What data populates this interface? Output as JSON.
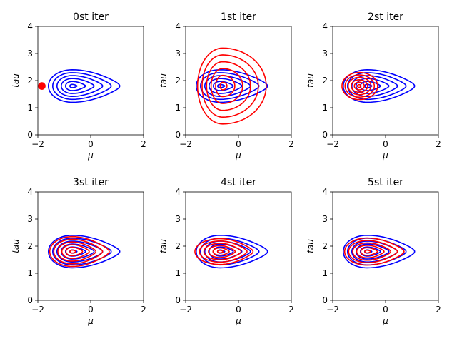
{
  "chart_data": [
    {
      "type": "contour",
      "title": "0st iter",
      "xlabel": "μ",
      "ylabel": "tau",
      "xlim": [
        -2,
        2
      ],
      "ylim": [
        0,
        4
      ],
      "xticks": [
        "−2",
        "0",
        "2"
      ],
      "yticks": [
        "0",
        "1",
        "2",
        "3",
        "4"
      ],
      "series": [
        {
          "color": "#0000ff",
          "center": [
            -0.7,
            1.8
          ],
          "shape": "teardrop-right",
          "xmin": -1.6,
          "xmax": 1.1,
          "ymin": 1.2,
          "ymax": 2.4,
          "levels": 6
        },
        {
          "color": "#ff0000",
          "center": [
            -1.85,
            1.8
          ],
          "shape": "dot",
          "xmin": -1.95,
          "xmax": -1.75,
          "ymin": 1.68,
          "ymax": 1.92,
          "levels": 1
        }
      ]
    },
    {
      "type": "contour",
      "title": "1st iter",
      "xlabel": "μ",
      "ylabel": "tau",
      "xlim": [
        -2,
        2
      ],
      "ylim": [
        0,
        4
      ],
      "xticks": [
        "−2",
        "0",
        "2"
      ],
      "yticks": [
        "0",
        "1",
        "2",
        "3",
        "4"
      ],
      "series": [
        {
          "color": "#0000ff",
          "center": [
            -0.7,
            1.8
          ],
          "shape": "teardrop-right",
          "xmin": -1.6,
          "xmax": 1.1,
          "ymin": 1.2,
          "ymax": 2.4,
          "levels": 6
        },
        {
          "color": "#ff0000",
          "center": [
            -0.6,
            1.8
          ],
          "shape": "ellipse",
          "xmin": -1.55,
          "xmax": 1.05,
          "ymin": 0.4,
          "ymax": 3.2,
          "levels": 6
        }
      ]
    },
    {
      "type": "contour",
      "title": "2st iter",
      "xlabel": "μ",
      "ylabel": "tau",
      "xlim": [
        -2,
        2
      ],
      "ylim": [
        0,
        4
      ],
      "xticks": [
        "−2",
        "0",
        "2"
      ],
      "yticks": [
        "0",
        "1",
        "2",
        "3",
        "4"
      ],
      "series": [
        {
          "color": "#0000ff",
          "center": [
            -0.7,
            1.8
          ],
          "shape": "teardrop-right",
          "xmin": -1.6,
          "xmax": 1.1,
          "ymin": 1.2,
          "ymax": 2.4,
          "levels": 6
        },
        {
          "color": "#ff0000",
          "center": [
            -1.0,
            1.8
          ],
          "shape": "ellipse",
          "xmin": -1.65,
          "xmax": -0.3,
          "ymin": 1.3,
          "ymax": 2.3,
          "levels": 6
        }
      ]
    },
    {
      "type": "contour",
      "title": "3st iter",
      "xlabel": "μ",
      "ylabel": "tau",
      "xlim": [
        -2,
        2
      ],
      "ylim": [
        0,
        4
      ],
      "xticks": [
        "−2",
        "0",
        "2"
      ],
      "yticks": [
        "0",
        "1",
        "2",
        "3",
        "4"
      ],
      "series": [
        {
          "color": "#0000ff",
          "center": [
            -0.7,
            1.8
          ],
          "shape": "teardrop-right",
          "xmin": -1.6,
          "xmax": 1.1,
          "ymin": 1.2,
          "ymax": 2.4,
          "levels": 6
        },
        {
          "color": "#ff0000",
          "center": [
            -0.7,
            1.8
          ],
          "shape": "teardrop-right",
          "xmin": -1.55,
          "xmax": 0.7,
          "ymin": 1.25,
          "ymax": 2.35,
          "levels": 6
        }
      ]
    },
    {
      "type": "contour",
      "title": "4st iter",
      "xlabel": "μ",
      "ylabel": "tau",
      "xlim": [
        -2,
        2
      ],
      "ylim": [
        0,
        4
      ],
      "xticks": [
        "−2",
        "0",
        "2"
      ],
      "yticks": [
        "0",
        "1",
        "2",
        "3",
        "4"
      ],
      "series": [
        {
          "color": "#0000ff",
          "center": [
            -0.7,
            1.8
          ],
          "shape": "teardrop-right",
          "xmin": -1.6,
          "xmax": 1.1,
          "ymin": 1.2,
          "ymax": 2.4,
          "levels": 6
        },
        {
          "color": "#ff0000",
          "center": [
            -0.7,
            1.8
          ],
          "shape": "teardrop-right",
          "xmin": -1.65,
          "xmax": 0.55,
          "ymin": 1.35,
          "ymax": 2.3,
          "levels": 6
        }
      ]
    },
    {
      "type": "contour",
      "title": "5st iter",
      "xlabel": "μ",
      "ylabel": "tau",
      "xlim": [
        -2,
        2
      ],
      "ylim": [
        0,
        4
      ],
      "xticks": [
        "−2",
        "0",
        "2"
      ],
      "yticks": [
        "0",
        "1",
        "2",
        "3",
        "4"
      ],
      "series": [
        {
          "color": "#0000ff",
          "center": [
            -0.7,
            1.8
          ],
          "shape": "teardrop-right",
          "xmin": -1.6,
          "xmax": 1.1,
          "ymin": 1.2,
          "ymax": 2.4,
          "levels": 6
        },
        {
          "color": "#ff0000",
          "center": [
            -0.7,
            1.8
          ],
          "shape": "teardrop-right",
          "xmin": -1.55,
          "xmax": 0.7,
          "ymin": 1.3,
          "ymax": 2.3,
          "levels": 6
        }
      ]
    }
  ]
}
